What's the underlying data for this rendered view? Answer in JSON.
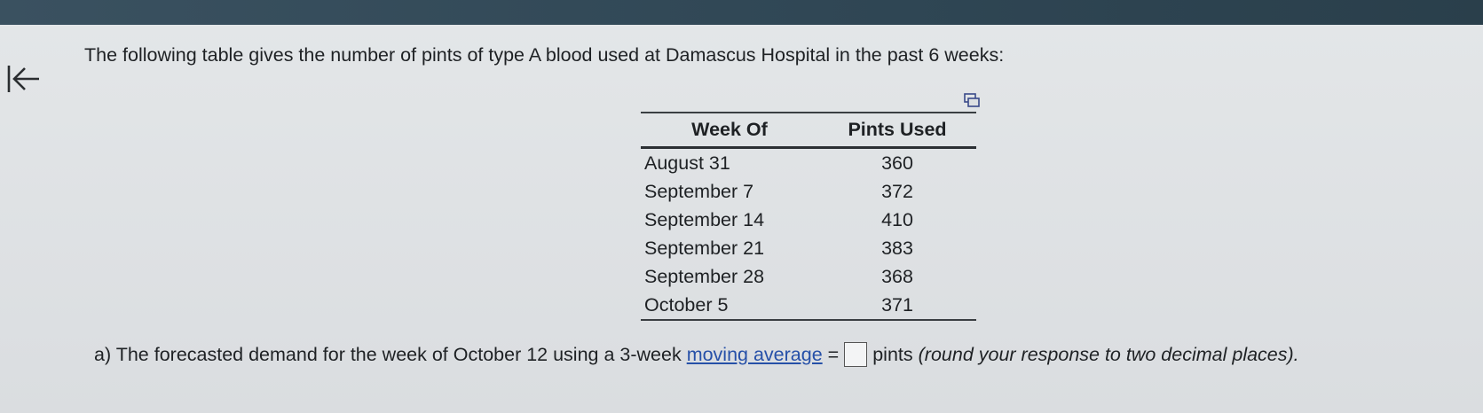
{
  "question": {
    "intro": "The following table gives the number of pints of type A blood used at Damascus Hospital in the past 6 weeks:"
  },
  "table": {
    "headers": [
      "Week Of",
      "Pints Used"
    ],
    "rows": [
      [
        "August 31",
        "360"
      ],
      [
        "September 7",
        "372"
      ],
      [
        "September 14",
        "410"
      ],
      [
        "September 21",
        "383"
      ],
      [
        "September 28",
        "368"
      ],
      [
        "October 5",
        "371"
      ]
    ]
  },
  "part_a": {
    "prefix": "a) The forecasted demand for the week of October 12 using a 3-week",
    "link_text": "moving average",
    "equals": "=",
    "answer_value": "",
    "unit": "pints",
    "hint": "(round your response to two decimal places)."
  },
  "icons": {
    "back": "back-arrow-icon",
    "copy": "copy-icon"
  },
  "colors": {
    "top_bar": "#2f4654",
    "link": "#2650a8",
    "background": "#dcdfe1"
  }
}
